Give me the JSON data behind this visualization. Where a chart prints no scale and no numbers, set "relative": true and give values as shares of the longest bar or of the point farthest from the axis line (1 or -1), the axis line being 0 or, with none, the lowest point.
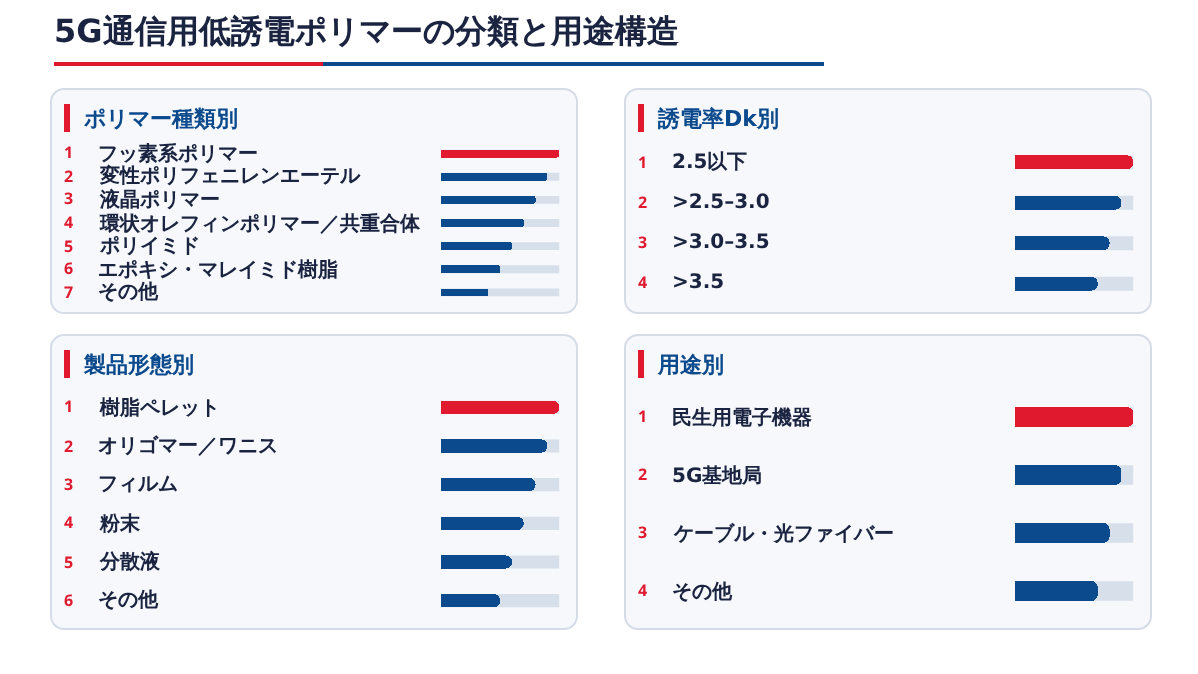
{
  "chart_data": [
    {
      "type": "other",
      "title": "5G通信用低誘電ポリマーの分類と用途構造"
    },
    {
      "type": "bar",
      "orientation": "horizontal",
      "relative": true,
      "title": "ポリマー種類別",
      "categories": [
        "フッ素系ポリマー",
        "変性ポリフェニレンエーテル",
        "液晶ポリマー",
        "環状オレフィンポリマー／共重合体",
        "ポリイミド",
        "エポキシ・マレイミド樹脂",
        "その他"
      ],
      "values": [
        1,
        0.9,
        0.8,
        0.7,
        0.6,
        0.5,
        0.4
      ],
      "colors": [
        "#e0192e",
        "#0b4a8c",
        "#0b4a8c",
        "#0b4a8c",
        "#0b4a8c",
        "#0b4a8c",
        "#0b4a8c"
      ],
      "annotations": [
        "1",
        "2",
        "3",
        "4",
        "5",
        "6",
        "7"
      ]
    },
    {
      "type": "bar",
      "orientation": "horizontal",
      "relative": true,
      "title": "誘電率Dk別",
      "categories": [
        "2.5以下",
        ">2.5–3.0",
        ">3.0–3.5",
        ">3.5"
      ],
      "values": [
        1,
        0.9,
        0.8,
        0.7
      ],
      "colors": [
        "#e0192e",
        "#0b4a8c",
        "#0b4a8c",
        "#0b4a8c"
      ],
      "annotations": [
        "1",
        "2",
        "3",
        "4"
      ]
    },
    {
      "type": "bar",
      "orientation": "horizontal",
      "relative": true,
      "title": "製品形態別",
      "categories": [
        "樹脂ペレット",
        "オリゴマー／ワニス",
        "フィルム",
        "粉末",
        "分散液",
        "その他"
      ],
      "values": [
        1,
        0.9,
        0.8,
        0.7,
        0.6,
        0.5
      ],
      "colors": [
        "#e0192e",
        "#0b4a8c",
        "#0b4a8c",
        "#0b4a8c",
        "#0b4a8c",
        "#0b4a8c"
      ],
      "annotations": [
        "1",
        "2",
        "3",
        "4",
        "5",
        "6"
      ]
    },
    {
      "type": "bar",
      "orientation": "horizontal",
      "relative": true,
      "title": "用途別",
      "categories": [
        "民生用電子機器",
        "5G基地局",
        "ケーブル・光ファイバー",
        "その他"
      ],
      "values": [
        1,
        0.9,
        0.8,
        0.7
      ],
      "colors": [
        "#e0192e",
        "#0b4a8c",
        "#0b4a8c",
        "#0b4a8c"
      ],
      "annotations": [
        "1",
        "2",
        "3",
        "4"
      ]
    }
  ]
}
